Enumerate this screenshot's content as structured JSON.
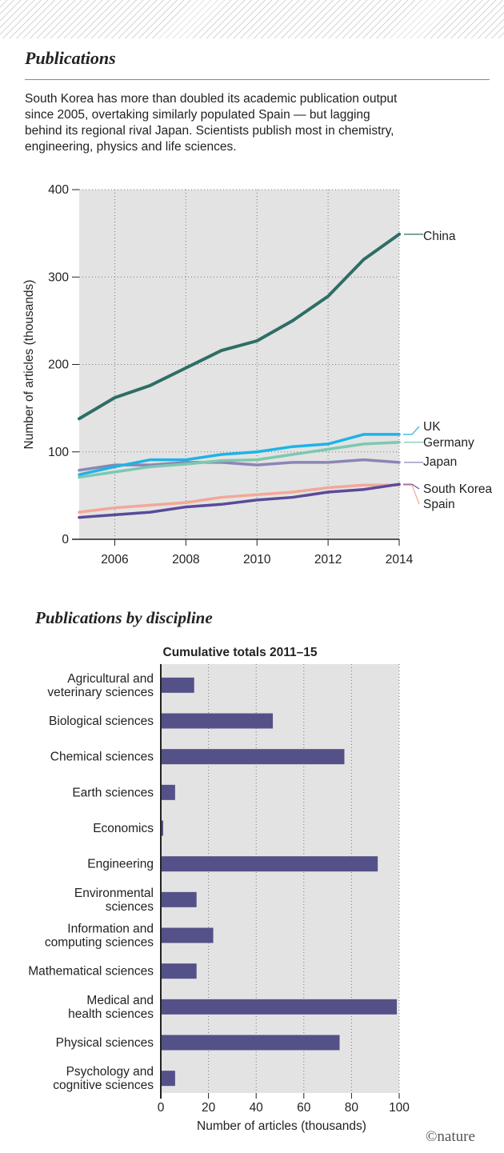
{
  "header": {
    "title": "Publications",
    "intro": "South Korea has more than doubled its academic publication output since 2005, overtaking similarly populated Spain — but lagging behind its regional rival Japan. Scientists publish most in chemistry, engineering, physics and life sciences."
  },
  "section2": {
    "title": "Publications by discipline"
  },
  "credit": "©nature",
  "chart_data": [
    {
      "type": "line",
      "title": "",
      "xlabel": "",
      "ylabel": "Number of articles (thousands)",
      "xlim": [
        2005,
        2014
      ],
      "ylim": [
        0,
        400
      ],
      "grid": true,
      "x": [
        2005,
        2006,
        2007,
        2008,
        2009,
        2010,
        2011,
        2012,
        2013,
        2014
      ],
      "x_ticks": [
        "2006",
        "2008",
        "2010",
        "2012",
        "2014"
      ],
      "y_ticks": [
        "0",
        "100",
        "200",
        "300",
        "400"
      ],
      "series": [
        {
          "name": "China",
          "color": "#2e6e66",
          "values": [
            138,
            162,
            176,
            196,
            216,
            227,
            250,
            278,
            320,
            349
          ]
        },
        {
          "name": "UK",
          "color": "#1eb3e6",
          "values": [
            74,
            83,
            91,
            91,
            97,
            100,
            106,
            109,
            120,
            120
          ]
        },
        {
          "name": "Germany",
          "color": "#7cc8b0",
          "values": [
            71,
            77,
            83,
            86,
            90,
            91,
            97,
            103,
            109,
            111
          ]
        },
        {
          "name": "Japan",
          "color": "#8a86b4",
          "values": [
            79,
            85,
            85,
            88,
            88,
            85,
            88,
            88,
            91,
            88
          ]
        },
        {
          "name": "South Korea",
          "color": "#5a4a9a",
          "values": [
            25,
            28,
            31,
            37,
            40,
            45,
            48,
            54,
            57,
            63
          ]
        },
        {
          "name": "Spain",
          "color": "#f2a899",
          "values": [
            31,
            36,
            39,
            42,
            48,
            51,
            54,
            59,
            62,
            62
          ]
        }
      ]
    },
    {
      "type": "bar",
      "orientation": "horizontal",
      "title": "Cumulative totals 2011–15",
      "xlabel": "Number of articles (thousands)",
      "ylabel": "",
      "xlim": [
        0,
        100
      ],
      "x_ticks": [
        "0",
        "20",
        "40",
        "60",
        "80",
        "100"
      ],
      "grid": true,
      "color": "#545189",
      "categories": [
        [
          "Agricultural and",
          "veterinary sciences"
        ],
        [
          "Biological sciences"
        ],
        [
          "Chemical sciences"
        ],
        [
          "Earth sciences"
        ],
        [
          "Economics"
        ],
        [
          "Engineering"
        ],
        [
          "Environmental",
          "sciences"
        ],
        [
          "Information and",
          "computing sciences"
        ],
        [
          "Mathematical sciences"
        ],
        [
          "Medical and",
          "health sciences"
        ],
        [
          "Physical sciences"
        ],
        [
          "Psychology and",
          "cognitive sciences"
        ]
      ],
      "values": [
        14,
        47,
        77,
        6,
        1,
        91,
        15,
        22,
        15,
        99,
        75,
        6
      ]
    }
  ]
}
